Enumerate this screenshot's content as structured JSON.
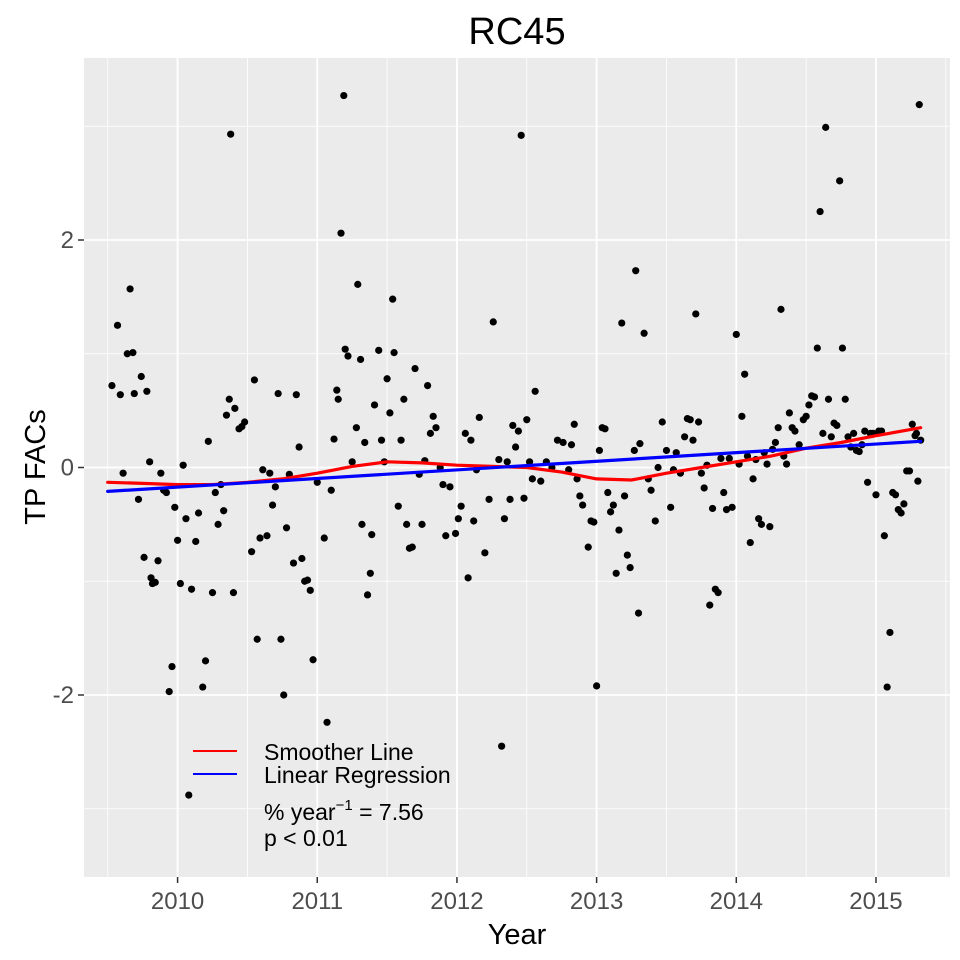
{
  "chart_data": {
    "type": "scatter",
    "title": "RC45",
    "xlabel": "Year",
    "ylabel": "TP FACs",
    "xlim": [
      2009.33,
      2015.53
    ],
    "ylim": [
      -3.6,
      3.6
    ],
    "x_ticks": [
      2010,
      2011,
      2012,
      2013,
      2014,
      2015
    ],
    "x_tick_labels": [
      "2010",
      "2011",
      "2012",
      "2013",
      "2014",
      "2015"
    ],
    "y_ticks": [
      -2,
      0,
      2
    ],
    "y_tick_labels": [
      "-2",
      "0",
      "2"
    ],
    "grid": true,
    "background": "#ebebeb",
    "legend_position": "bottom-left",
    "legend": {
      "smoother_label": "Smoother Line",
      "regression_label": "Linear Regression",
      "slope_prefix": "% year",
      "slope_exponent": "−1",
      "slope_suffix": " = 7.56",
      "p_value": "p < 0.01"
    },
    "series": [
      {
        "name": "Observations",
        "type": "scatter",
        "color": "#000000",
        "points": [
          [
            2009.53,
            0.72
          ],
          [
            2009.57,
            1.25
          ],
          [
            2009.59,
            0.64
          ],
          [
            2009.61,
            -0.05
          ],
          [
            2009.64,
            1.0
          ],
          [
            2009.66,
            1.57
          ],
          [
            2009.68,
            1.01
          ],
          [
            2009.69,
            0.65
          ],
          [
            2009.72,
            -0.28
          ],
          [
            2009.74,
            0.8
          ],
          [
            2009.76,
            -0.79
          ],
          [
            2009.78,
            0.67
          ],
          [
            2009.8,
            0.05
          ],
          [
            2009.81,
            -0.97
          ],
          [
            2009.82,
            -1.02
          ],
          [
            2009.84,
            -1.01
          ],
          [
            2009.86,
            -0.82
          ],
          [
            2009.88,
            -0.05
          ],
          [
            2009.9,
            -0.2
          ],
          [
            2009.92,
            -0.22
          ],
          [
            2009.94,
            -1.97
          ],
          [
            2009.96,
            -1.75
          ],
          [
            2009.98,
            -0.35
          ],
          [
            2010.0,
            -0.64
          ],
          [
            2010.02,
            -1.02
          ],
          [
            2010.04,
            0.02
          ],
          [
            2010.06,
            -0.45
          ],
          [
            2010.08,
            -2.88
          ],
          [
            2010.1,
            -1.07
          ],
          [
            2010.13,
            -0.65
          ],
          [
            2010.15,
            -0.4
          ],
          [
            2010.18,
            -1.93
          ],
          [
            2010.2,
            -1.7
          ],
          [
            2010.22,
            0.23
          ],
          [
            2010.25,
            -1.1
          ],
          [
            2010.27,
            -0.22
          ],
          [
            2010.29,
            -0.5
          ],
          [
            2010.31,
            -0.15
          ],
          [
            2010.33,
            -0.38
          ],
          [
            2010.35,
            0.46
          ],
          [
            2010.37,
            0.6
          ],
          [
            2010.38,
            2.93
          ],
          [
            2010.4,
            -1.1
          ],
          [
            2010.41,
            0.52
          ],
          [
            2010.44,
            0.34
          ],
          [
            2010.46,
            0.36
          ],
          [
            2010.48,
            0.4
          ],
          [
            2010.53,
            -0.74
          ],
          [
            2010.55,
            0.77
          ],
          [
            2010.57,
            -1.51
          ],
          [
            2010.59,
            -0.62
          ],
          [
            2010.61,
            -0.02
          ],
          [
            2010.64,
            -0.6
          ],
          [
            2010.66,
            -0.05
          ],
          [
            2010.68,
            -0.33
          ],
          [
            2010.7,
            -0.17
          ],
          [
            2010.72,
            0.65
          ],
          [
            2010.74,
            -1.51
          ],
          [
            2010.76,
            -2.0
          ],
          [
            2010.78,
            -0.53
          ],
          [
            2010.8,
            -0.06
          ],
          [
            2010.83,
            -0.84
          ],
          [
            2010.85,
            0.64
          ],
          [
            2010.87,
            0.18
          ],
          [
            2010.89,
            -0.8
          ],
          [
            2010.91,
            -1.0
          ],
          [
            2010.93,
            -0.99
          ],
          [
            2010.95,
            -1.08
          ],
          [
            2010.97,
            -1.69
          ],
          [
            2011.0,
            -0.13
          ],
          [
            2011.05,
            -0.62
          ],
          [
            2011.07,
            -2.24
          ],
          [
            2011.1,
            -0.2
          ],
          [
            2011.12,
            0.25
          ],
          [
            2011.14,
            0.68
          ],
          [
            2011.15,
            0.6
          ],
          [
            2011.17,
            2.06
          ],
          [
            2011.19,
            3.27
          ],
          [
            2011.2,
            1.04
          ],
          [
            2011.22,
            0.98
          ],
          [
            2011.25,
            0.05
          ],
          [
            2011.28,
            0.35
          ],
          [
            2011.29,
            1.61
          ],
          [
            2011.31,
            0.95
          ],
          [
            2011.32,
            -0.5
          ],
          [
            2011.34,
            0.22
          ],
          [
            2011.36,
            -1.12
          ],
          [
            2011.38,
            -0.93
          ],
          [
            2011.39,
            -0.59
          ],
          [
            2011.41,
            0.55
          ],
          [
            2011.44,
            1.03
          ],
          [
            2011.46,
            0.24
          ],
          [
            2011.48,
            0.05
          ],
          [
            2011.5,
            0.78
          ],
          [
            2011.52,
            0.48
          ],
          [
            2011.54,
            1.48
          ],
          [
            2011.55,
            1.01
          ],
          [
            2011.58,
            -0.34
          ],
          [
            2011.6,
            0.24
          ],
          [
            2011.62,
            0.6
          ],
          [
            2011.64,
            -0.5
          ],
          [
            2011.66,
            -0.71
          ],
          [
            2011.68,
            -0.7
          ],
          [
            2011.7,
            0.87
          ],
          [
            2011.73,
            -0.06
          ],
          [
            2011.75,
            -0.5
          ],
          [
            2011.77,
            0.06
          ],
          [
            2011.79,
            0.72
          ],
          [
            2011.81,
            0.3
          ],
          [
            2011.83,
            0.45
          ],
          [
            2011.85,
            0.35
          ],
          [
            2011.88,
            0.0
          ],
          [
            2011.9,
            -0.15
          ],
          [
            2011.92,
            -0.6
          ],
          [
            2011.95,
            -0.17
          ],
          [
            2011.99,
            -0.58
          ],
          [
            2012.01,
            -0.45
          ],
          [
            2012.03,
            -0.34
          ],
          [
            2012.06,
            0.3
          ],
          [
            2012.08,
            -0.97
          ],
          [
            2012.1,
            0.24
          ],
          [
            2012.12,
            -0.47
          ],
          [
            2012.14,
            -0.02
          ],
          [
            2012.16,
            0.44
          ],
          [
            2012.2,
            -0.75
          ],
          [
            2012.23,
            -0.28
          ],
          [
            2012.26,
            1.28
          ],
          [
            2012.3,
            0.07
          ],
          [
            2012.32,
            -2.45
          ],
          [
            2012.34,
            -0.45
          ],
          [
            2012.36,
            0.05
          ],
          [
            2012.38,
            -0.28
          ],
          [
            2012.4,
            0.37
          ],
          [
            2012.42,
            0.18
          ],
          [
            2012.44,
            0.32
          ],
          [
            2012.46,
            2.92
          ],
          [
            2012.48,
            -0.27
          ],
          [
            2012.5,
            0.42
          ],
          [
            2012.52,
            0.05
          ],
          [
            2012.54,
            -0.1
          ],
          [
            2012.56,
            0.67
          ],
          [
            2012.6,
            -0.12
          ],
          [
            2012.64,
            0.05
          ],
          [
            2012.68,
            0.0
          ],
          [
            2012.72,
            0.24
          ],
          [
            2012.76,
            0.22
          ],
          [
            2012.8,
            -0.02
          ],
          [
            2012.82,
            0.2
          ],
          [
            2012.84,
            0.38
          ],
          [
            2012.86,
            -0.1
          ],
          [
            2012.88,
            -0.25
          ],
          [
            2012.9,
            -0.33
          ],
          [
            2012.94,
            -0.7
          ],
          [
            2012.96,
            -0.47
          ],
          [
            2012.98,
            -0.48
          ],
          [
            2013.0,
            -1.92
          ],
          [
            2013.02,
            0.15
          ],
          [
            2013.04,
            0.35
          ],
          [
            2013.06,
            0.34
          ],
          [
            2013.08,
            -0.22
          ],
          [
            2013.1,
            -0.39
          ],
          [
            2013.12,
            -0.33
          ],
          [
            2013.14,
            -0.93
          ],
          [
            2013.16,
            -0.55
          ],
          [
            2013.18,
            1.27
          ],
          [
            2013.2,
            -0.25
          ],
          [
            2013.22,
            -0.77
          ],
          [
            2013.24,
            -0.88
          ],
          [
            2013.27,
            0.15
          ],
          [
            2013.28,
            1.73
          ],
          [
            2013.3,
            -1.28
          ],
          [
            2013.31,
            0.21
          ],
          [
            2013.34,
            1.18
          ],
          [
            2013.37,
            -0.1
          ],
          [
            2013.39,
            -0.2
          ],
          [
            2013.42,
            -0.47
          ],
          [
            2013.44,
            0.0
          ],
          [
            2013.47,
            0.4
          ],
          [
            2013.5,
            0.15
          ],
          [
            2013.53,
            -0.35
          ],
          [
            2013.55,
            -0.02
          ],
          [
            2013.57,
            0.13
          ],
          [
            2013.6,
            -0.05
          ],
          [
            2013.63,
            0.27
          ],
          [
            2013.65,
            0.43
          ],
          [
            2013.67,
            0.42
          ],
          [
            2013.69,
            0.24
          ],
          [
            2013.71,
            1.35
          ],
          [
            2013.73,
            0.4
          ],
          [
            2013.75,
            -0.05
          ],
          [
            2013.77,
            -0.18
          ],
          [
            2013.79,
            0.02
          ],
          [
            2013.81,
            -1.21
          ],
          [
            2013.83,
            -0.36
          ],
          [
            2013.85,
            -1.07
          ],
          [
            2013.87,
            -1.1
          ],
          [
            2013.89,
            0.08
          ],
          [
            2013.91,
            -0.22
          ],
          [
            2013.93,
            -0.37
          ],
          [
            2013.95,
            0.08
          ],
          [
            2013.97,
            -0.35
          ],
          [
            2014.0,
            1.17
          ],
          [
            2014.02,
            0.03
          ],
          [
            2014.04,
            0.45
          ],
          [
            2014.06,
            0.82
          ],
          [
            2014.08,
            0.1
          ],
          [
            2014.1,
            -0.66
          ],
          [
            2014.12,
            -0.1
          ],
          [
            2014.14,
            0.07
          ],
          [
            2014.16,
            -0.45
          ],
          [
            2014.18,
            -0.5
          ],
          [
            2014.2,
            0.13
          ],
          [
            2014.22,
            0.03
          ],
          [
            2014.24,
            -0.52
          ],
          [
            2014.26,
            0.16
          ],
          [
            2014.28,
            0.22
          ],
          [
            2014.3,
            0.35
          ],
          [
            2014.32,
            1.39
          ],
          [
            2014.34,
            0.1
          ],
          [
            2014.36,
            0.03
          ],
          [
            2014.38,
            0.48
          ],
          [
            2014.4,
            0.35
          ],
          [
            2014.42,
            0.32
          ],
          [
            2014.45,
            0.2
          ],
          [
            2014.48,
            0.42
          ],
          [
            2014.5,
            0.45
          ],
          [
            2014.52,
            0.55
          ],
          [
            2014.54,
            0.63
          ],
          [
            2014.56,
            0.62
          ],
          [
            2014.58,
            1.05
          ],
          [
            2014.6,
            2.25
          ],
          [
            2014.62,
            0.3
          ],
          [
            2014.64,
            2.99
          ],
          [
            2014.66,
            0.6
          ],
          [
            2014.68,
            0.27
          ],
          [
            2014.7,
            0.39
          ],
          [
            2014.72,
            0.37
          ],
          [
            2014.74,
            2.52
          ],
          [
            2014.76,
            1.05
          ],
          [
            2014.78,
            0.6
          ],
          [
            2014.8,
            0.27
          ],
          [
            2014.82,
            0.18
          ],
          [
            2014.84,
            0.3
          ],
          [
            2014.86,
            0.15
          ],
          [
            2014.88,
            0.14
          ],
          [
            2014.9,
            0.2
          ],
          [
            2014.92,
            0.32
          ],
          [
            2014.94,
            -0.13
          ],
          [
            2014.96,
            0.3
          ],
          [
            2014.98,
            0.3
          ],
          [
            2015.0,
            -0.24
          ],
          [
            2015.02,
            0.32
          ],
          [
            2015.04,
            0.32
          ],
          [
            2015.06,
            -0.6
          ],
          [
            2015.08,
            -1.93
          ],
          [
            2015.1,
            -1.45
          ],
          [
            2015.12,
            -0.22
          ],
          [
            2015.14,
            -0.24
          ],
          [
            2015.16,
            -0.37
          ],
          [
            2015.18,
            -0.4
          ],
          [
            2015.2,
            -0.32
          ],
          [
            2015.22,
            -0.03
          ],
          [
            2015.24,
            -0.03
          ],
          [
            2015.26,
            0.38
          ],
          [
            2015.28,
            0.28
          ],
          [
            2015.29,
            0.3
          ],
          [
            2015.3,
            -0.12
          ],
          [
            2015.31,
            3.19
          ],
          [
            2015.32,
            0.24
          ]
        ]
      },
      {
        "name": "Smoother Line",
        "type": "line",
        "color": "#ff0000",
        "x": [
          2009.5,
          2009.75,
          2010.0,
          2010.25,
          2010.5,
          2010.75,
          2011.0,
          2011.25,
          2011.5,
          2011.75,
          2012.0,
          2012.25,
          2012.5,
          2012.75,
          2013.0,
          2013.25,
          2013.5,
          2013.75,
          2014.0,
          2014.25,
          2014.5,
          2014.75,
          2015.0,
          2015.32
        ],
        "values": [
          -0.13,
          -0.14,
          -0.15,
          -0.15,
          -0.13,
          -0.1,
          -0.05,
          0.01,
          0.05,
          0.04,
          0.02,
          0.01,
          0.0,
          -0.04,
          -0.1,
          -0.11,
          -0.05,
          0.0,
          0.05,
          0.1,
          0.17,
          0.22,
          0.28,
          0.35
        ]
      },
      {
        "name": "Linear Regression",
        "type": "line",
        "color": "#0000ff",
        "x": [
          2009.5,
          2015.32
        ],
        "values": [
          -0.21,
          0.23
        ]
      }
    ]
  }
}
